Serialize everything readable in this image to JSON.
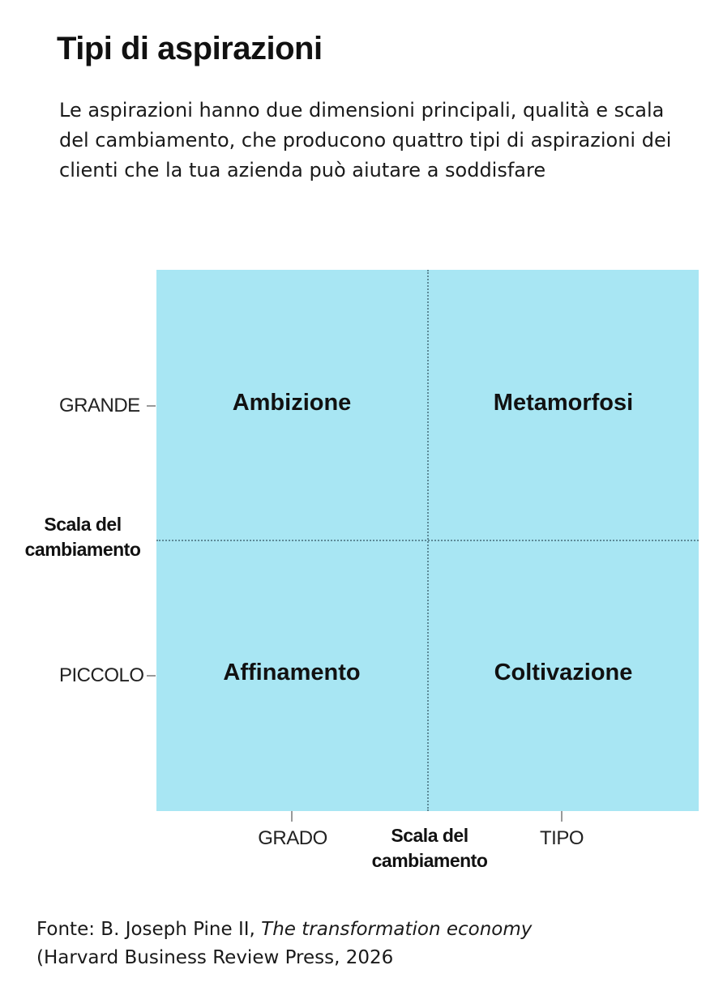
{
  "title": "Tipi di aspirazioni",
  "subtitle": "Le aspirazioni hanno due dimensioni principali, qualità e scala del cambiamento, che producono quattro tipi di aspirazioni dei clienti che la tua azienda può aiutare a soddisfare",
  "chart_data": {
    "type": "quadrant",
    "y_axis": {
      "title": [
        "Scala del",
        "cambiamento"
      ],
      "ticks": [
        "GRANDE",
        "PICCOLO"
      ]
    },
    "x_axis": {
      "title": [
        "Scala del",
        "cambiamento"
      ],
      "ticks": [
        "GRADO",
        "TIPO"
      ]
    },
    "quadrants": {
      "top_left": "Ambizione",
      "top_right": "Metamorfosi",
      "bottom_left": "Affinamento",
      "bottom_right": "Coltivazione"
    },
    "fill_color": "#a8e6f3",
    "divider_color": "#5d8a97"
  },
  "source": {
    "prefix": "Fonte: B. Joseph Pine II, ",
    "book": "The transformation economy",
    "suffix": "(Harvard Business Review Press, 2026"
  }
}
